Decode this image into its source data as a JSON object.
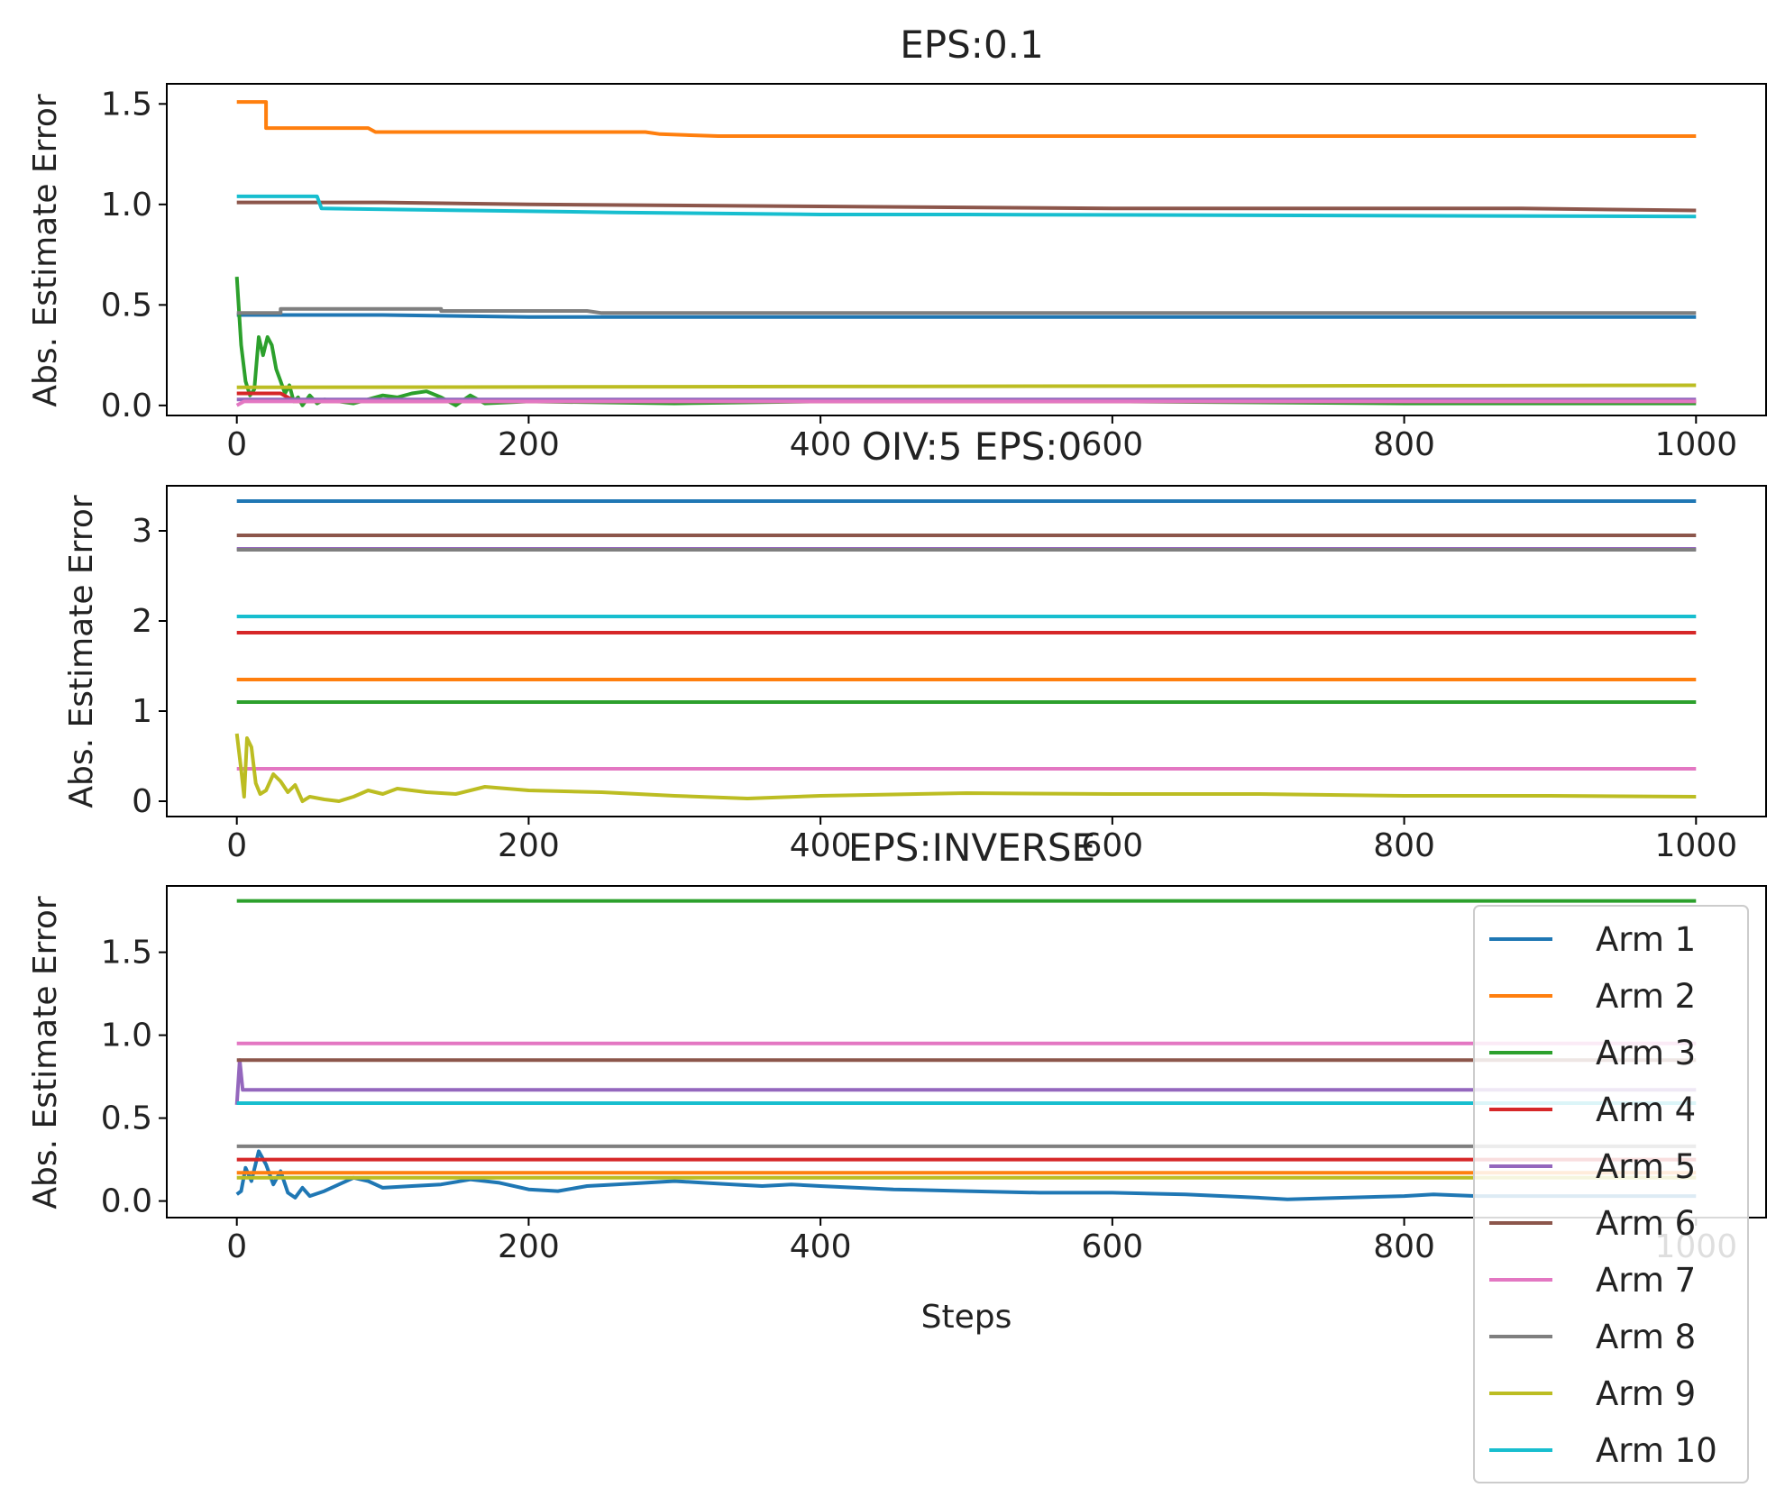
{
  "figure": {
    "xlabel": "Steps",
    "legend": {
      "placement": "lower-right",
      "entries": [
        "Arm 1",
        "Arm 2",
        "Arm 3",
        "Arm 4",
        "Arm 5",
        "Arm 6",
        "Arm 7",
        "Arm 8",
        "Arm 9",
        "Arm 10"
      ]
    },
    "colors": [
      "#1f77b4",
      "#ff7f0e",
      "#2ca02c",
      "#d62728",
      "#9467bd",
      "#8c564b",
      "#e377c2",
      "#7f7f7f",
      "#bcbd22",
      "#17becf"
    ]
  },
  "chart_data": [
    {
      "type": "line",
      "title": "EPS:0.1",
      "xlabel": "",
      "ylabel": "Abs. Estimate Error",
      "xlim": [
        -48,
        1048
      ],
      "ylim": [
        -0.05,
        1.6
      ],
      "xticks": [
        0,
        200,
        400,
        600,
        800,
        1000
      ],
      "yticks": [
        0.0,
        0.5,
        1.0,
        1.5
      ],
      "ytick_labels": [
        "0.0",
        "0.5",
        "1.0",
        "1.5"
      ],
      "series": [
        {
          "name": "Arm 1",
          "points": [
            [
              0,
              0.45
            ],
            [
              100,
              0.45
            ],
            [
              200,
              0.44
            ],
            [
              1000,
              0.44
            ]
          ]
        },
        {
          "name": "Arm 2",
          "points": [
            [
              0,
              1.51
            ],
            [
              20,
              1.51
            ],
            [
              20,
              1.38
            ],
            [
              90,
              1.38
            ],
            [
              95,
              1.36
            ],
            [
              280,
              1.36
            ],
            [
              290,
              1.35
            ],
            [
              330,
              1.34
            ],
            [
              1000,
              1.34
            ]
          ]
        },
        {
          "name": "Arm 3",
          "points": [
            [
              0,
              0.64
            ],
            [
              3,
              0.3
            ],
            [
              6,
              0.12
            ],
            [
              9,
              0.05
            ],
            [
              12,
              0.08
            ],
            [
              15,
              0.34
            ],
            [
              18,
              0.25
            ],
            [
              21,
              0.34
            ],
            [
              24,
              0.3
            ],
            [
              27,
              0.18
            ],
            [
              30,
              0.12
            ],
            [
              33,
              0.06
            ],
            [
              36,
              0.1
            ],
            [
              39,
              0.02
            ],
            [
              42,
              0.04
            ],
            [
              45,
              0.0
            ],
            [
              50,
              0.05
            ],
            [
              55,
              0.01
            ],
            [
              60,
              0.03
            ],
            [
              70,
              0.02
            ],
            [
              80,
              0.01
            ],
            [
              100,
              0.05
            ],
            [
              110,
              0.04
            ],
            [
              120,
              0.06
            ],
            [
              130,
              0.07
            ],
            [
              140,
              0.04
            ],
            [
              150,
              0.0
            ],
            [
              160,
              0.05
            ],
            [
              170,
              0.01
            ],
            [
              200,
              0.02
            ],
            [
              300,
              0.01
            ],
            [
              400,
              0.02
            ],
            [
              600,
              0.02
            ],
            [
              800,
              0.01
            ],
            [
              1000,
              0.01
            ]
          ]
        },
        {
          "name": "Arm 4",
          "points": [
            [
              0,
              0.06
            ],
            [
              30,
              0.06
            ],
            [
              40,
              0.02
            ],
            [
              1000,
              0.02
            ]
          ]
        },
        {
          "name": "Arm 5",
          "points": [
            [
              0,
              0.03
            ],
            [
              1000,
              0.03
            ]
          ]
        },
        {
          "name": "Arm 6",
          "points": [
            [
              0,
              1.01
            ],
            [
              100,
              1.01
            ],
            [
              200,
              1.0
            ],
            [
              400,
              0.99
            ],
            [
              600,
              0.98
            ],
            [
              880,
              0.98
            ],
            [
              1000,
              0.97
            ]
          ]
        },
        {
          "name": "Arm 7",
          "points": [
            [
              0,
              0.0
            ],
            [
              5,
              0.02
            ],
            [
              1000,
              0.02
            ]
          ]
        },
        {
          "name": "Arm 8",
          "points": [
            [
              0,
              0.46
            ],
            [
              30,
              0.46
            ],
            [
              30,
              0.48
            ],
            [
              140,
              0.48
            ],
            [
              140,
              0.47
            ],
            [
              240,
              0.47
            ],
            [
              250,
              0.46
            ],
            [
              1000,
              0.46
            ]
          ]
        },
        {
          "name": "Arm 9",
          "points": [
            [
              0,
              0.09
            ],
            [
              1000,
              0.1
            ]
          ]
        },
        {
          "name": "Arm 10",
          "points": [
            [
              0,
              1.04
            ],
            [
              55,
              1.04
            ],
            [
              58,
              0.98
            ],
            [
              160,
              0.97
            ],
            [
              260,
              0.96
            ],
            [
              400,
              0.95
            ],
            [
              500,
              0.95
            ],
            [
              1000,
              0.94
            ]
          ]
        }
      ]
    },
    {
      "type": "line",
      "title": "OIV:5 EPS:0",
      "xlabel": "",
      "ylabel": "Abs. Estimate Error",
      "xlim": [
        -48,
        1048
      ],
      "ylim": [
        -0.17,
        3.5
      ],
      "xticks": [
        0,
        200,
        400,
        600,
        800,
        1000
      ],
      "yticks": [
        0,
        1,
        2,
        3
      ],
      "ytick_labels": [
        "0",
        "1",
        "2",
        "3"
      ],
      "series": [
        {
          "name": "Arm 1",
          "points": [
            [
              0,
              3.33
            ],
            [
              1000,
              3.33
            ]
          ]
        },
        {
          "name": "Arm 2",
          "points": [
            [
              0,
              1.35
            ],
            [
              1000,
              1.35
            ]
          ]
        },
        {
          "name": "Arm 3",
          "points": [
            [
              0,
              1.1
            ],
            [
              1000,
              1.1
            ]
          ]
        },
        {
          "name": "Arm 4",
          "points": [
            [
              0,
              1.87
            ],
            [
              1000,
              1.87
            ]
          ]
        },
        {
          "name": "Arm 5",
          "points": [
            [
              0,
              2.8
            ],
            [
              1000,
              2.8
            ]
          ]
        },
        {
          "name": "Arm 6",
          "points": [
            [
              0,
              2.95
            ],
            [
              1000,
              2.95
            ]
          ]
        },
        {
          "name": "Arm 7",
          "points": [
            [
              0,
              0.36
            ],
            [
              1000,
              0.36
            ]
          ]
        },
        {
          "name": "Arm 8",
          "points": [
            [
              0,
              2.79
            ],
            [
              1000,
              2.79
            ]
          ]
        },
        {
          "name": "Arm 9",
          "points": [
            [
              0,
              0.75
            ],
            [
              3,
              0.35
            ],
            [
              5,
              0.05
            ],
            [
              7,
              0.7
            ],
            [
              10,
              0.6
            ],
            [
              13,
              0.2
            ],
            [
              16,
              0.08
            ],
            [
              20,
              0.12
            ],
            [
              25,
              0.3
            ],
            [
              30,
              0.22
            ],
            [
              35,
              0.1
            ],
            [
              40,
              0.18
            ],
            [
              45,
              0.0
            ],
            [
              50,
              0.05
            ],
            [
              60,
              0.02
            ],
            [
              70,
              0.0
            ],
            [
              80,
              0.05
            ],
            [
              90,
              0.12
            ],
            [
              100,
              0.08
            ],
            [
              110,
              0.14
            ],
            [
              130,
              0.1
            ],
            [
              150,
              0.08
            ],
            [
              170,
              0.16
            ],
            [
              200,
              0.12
            ],
            [
              250,
              0.1
            ],
            [
              300,
              0.06
            ],
            [
              350,
              0.03
            ],
            [
              400,
              0.06
            ],
            [
              500,
              0.09
            ],
            [
              600,
              0.08
            ],
            [
              700,
              0.08
            ],
            [
              800,
              0.06
            ],
            [
              900,
              0.06
            ],
            [
              1000,
              0.05
            ]
          ]
        },
        {
          "name": "Arm 10",
          "points": [
            [
              0,
              2.05
            ],
            [
              1000,
              2.05
            ]
          ]
        }
      ]
    },
    {
      "type": "line",
      "title": "EPS:INVERSE",
      "xlabel": "Steps",
      "ylabel": "Abs. Estimate Error",
      "xlim": [
        -48,
        1048
      ],
      "ylim": [
        -0.1,
        1.9
      ],
      "xticks": [
        0,
        200,
        400,
        600,
        800,
        1000
      ],
      "yticks": [
        0.0,
        0.5,
        1.0,
        1.5
      ],
      "ytick_labels": [
        "0.0",
        "0.5",
        "1.0",
        "1.5"
      ],
      "series": [
        {
          "name": "Arm 1",
          "points": [
            [
              0,
              0.04
            ],
            [
              3,
              0.06
            ],
            [
              6,
              0.2
            ],
            [
              10,
              0.12
            ],
            [
              15,
              0.3
            ],
            [
              20,
              0.22
            ],
            [
              25,
              0.1
            ],
            [
              30,
              0.18
            ],
            [
              35,
              0.05
            ],
            [
              40,
              0.02
            ],
            [
              45,
              0.08
            ],
            [
              50,
              0.03
            ],
            [
              60,
              0.06
            ],
            [
              70,
              0.1
            ],
            [
              80,
              0.14
            ],
            [
              90,
              0.12
            ],
            [
              100,
              0.08
            ],
            [
              120,
              0.09
            ],
            [
              140,
              0.1
            ],
            [
              160,
              0.13
            ],
            [
              180,
              0.11
            ],
            [
              200,
              0.07
            ],
            [
              220,
              0.06
            ],
            [
              240,
              0.09
            ],
            [
              260,
              0.1
            ],
            [
              280,
              0.11
            ],
            [
              300,
              0.12
            ],
            [
              320,
              0.11
            ],
            [
              340,
              0.1
            ],
            [
              360,
              0.09
            ],
            [
              380,
              0.1
            ],
            [
              400,
              0.09
            ],
            [
              450,
              0.07
            ],
            [
              500,
              0.06
            ],
            [
              550,
              0.05
            ],
            [
              600,
              0.05
            ],
            [
              650,
              0.04
            ],
            [
              700,
              0.02
            ],
            [
              720,
              0.01
            ],
            [
              760,
              0.02
            ],
            [
              800,
              0.03
            ],
            [
              820,
              0.04
            ],
            [
              850,
              0.03
            ],
            [
              900,
              0.03
            ],
            [
              1000,
              0.03
            ]
          ]
        },
        {
          "name": "Arm 2",
          "points": [
            [
              0,
              0.17
            ],
            [
              1000,
              0.17
            ]
          ]
        },
        {
          "name": "Arm 3",
          "points": [
            [
              0,
              1.81
            ],
            [
              1000,
              1.81
            ]
          ]
        },
        {
          "name": "Arm 4",
          "points": [
            [
              0,
              0.25
            ],
            [
              1000,
              0.25
            ]
          ]
        },
        {
          "name": "Arm 5",
          "points": [
            [
              0,
              0.58
            ],
            [
              2,
              0.85
            ],
            [
              4,
              0.67
            ],
            [
              1000,
              0.67
            ]
          ]
        },
        {
          "name": "Arm 6",
          "points": [
            [
              0,
              0.85
            ],
            [
              1000,
              0.85
            ]
          ]
        },
        {
          "name": "Arm 7",
          "points": [
            [
              0,
              0.95
            ],
            [
              1000,
              0.95
            ]
          ]
        },
        {
          "name": "Arm 8",
          "points": [
            [
              0,
              0.33
            ],
            [
              1000,
              0.33
            ]
          ]
        },
        {
          "name": "Arm 9",
          "points": [
            [
              0,
              0.14
            ],
            [
              1000,
              0.14
            ]
          ]
        },
        {
          "name": "Arm 10",
          "points": [
            [
              0,
              0.59
            ],
            [
              1000,
              0.59
            ]
          ]
        }
      ]
    }
  ]
}
